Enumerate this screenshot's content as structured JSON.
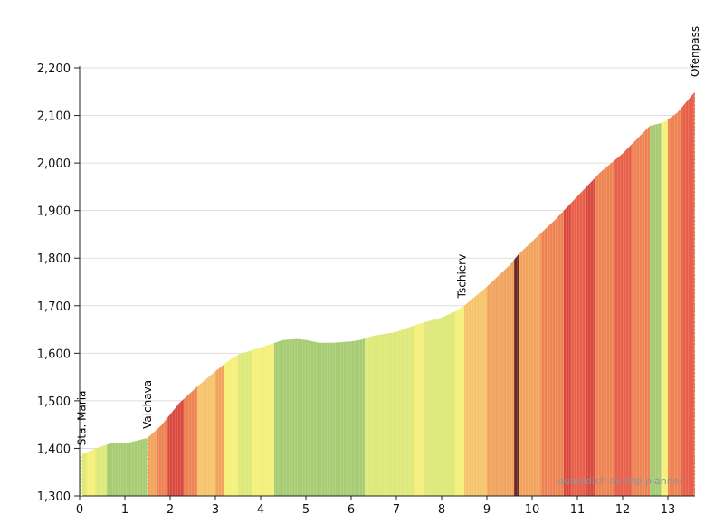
{
  "chart_data": {
    "type": "area",
    "title": "",
    "xlabel": "",
    "ylabel": "",
    "xlim": [
      0,
      13.6
    ],
    "ylim": [
      1300,
      2200
    ],
    "x_ticks": [
      0,
      1,
      2,
      3,
      4,
      5,
      6,
      7,
      8,
      9,
      10,
      11,
      12,
      13
    ],
    "x_tick_labels": [
      "0",
      "1",
      "2",
      "3",
      "4",
      "5",
      "6",
      "7",
      "8",
      "9",
      "10",
      "11",
      "12",
      "13"
    ],
    "y_ticks": [
      1300,
      1400,
      1500,
      1600,
      1700,
      1800,
      1900,
      2000,
      2100,
      2200
    ],
    "y_tick_labels": [
      "1,300",
      "1,400",
      "1,500",
      "1,600",
      "1,700",
      "1,800",
      "1,900",
      "2,000",
      "2,100",
      "2,200"
    ],
    "grid": "horizontal",
    "series": [
      {
        "x": [
          0,
          0.3,
          0.6,
          0.75,
          1.0,
          1.2,
          1.5,
          1.8,
          2.2,
          2.6,
          3.0,
          3.3,
          3.5,
          4.0,
          4.5,
          4.8,
          5.0,
          5.3,
          5.6,
          6.0,
          6.2,
          6.5,
          7.0,
          7.5,
          8.0,
          8.3,
          8.5,
          9.0,
          9.5,
          9.7,
          10.0,
          10.5,
          11.0,
          11.5,
          12.0,
          12.6,
          12.9,
          13.2,
          13.6
        ],
        "y": [
          1385,
          1398,
          1408,
          1412,
          1410,
          1415,
          1422,
          1448,
          1495,
          1530,
          1562,
          1585,
          1597,
          1612,
          1628,
          1630,
          1628,
          1622,
          1622,
          1625,
          1628,
          1637,
          1645,
          1662,
          1675,
          1688,
          1700,
          1740,
          1785,
          1808,
          1835,
          1880,
          1930,
          1980,
          2020,
          2078,
          2085,
          2105,
          2150
        ]
      }
    ],
    "gradient_colors": [
      "#a8cc74",
      "#dfe97a",
      "#f5f07a",
      "#f6c46a",
      "#f2a45e",
      "#ee8454",
      "#e8604a",
      "#d84a40",
      "#6b2a26"
    ],
    "gradient_bands": [
      {
        "from": 0,
        "to": 0.15,
        "color": 1
      },
      {
        "from": 0.15,
        "to": 0.35,
        "color": 2
      },
      {
        "from": 0.35,
        "to": 0.6,
        "color": 1
      },
      {
        "from": 0.6,
        "to": 1.5,
        "color": 0
      },
      {
        "from": 1.5,
        "to": 1.7,
        "color": 4
      },
      {
        "from": 1.7,
        "to": 1.95,
        "color": 5
      },
      {
        "from": 1.95,
        "to": 2.3,
        "color": 7
      },
      {
        "from": 2.3,
        "to": 2.6,
        "color": 5
      },
      {
        "from": 2.6,
        "to": 3.0,
        "color": 3
      },
      {
        "from": 3.0,
        "to": 3.2,
        "color": 4
      },
      {
        "from": 3.2,
        "to": 3.5,
        "color": 2
      },
      {
        "from": 3.5,
        "to": 3.8,
        "color": 1
      },
      {
        "from": 3.8,
        "to": 4.3,
        "color": 2
      },
      {
        "from": 4.3,
        "to": 6.3,
        "color": 0
      },
      {
        "from": 6.3,
        "to": 7.4,
        "color": 1
      },
      {
        "from": 7.4,
        "to": 7.6,
        "color": 2
      },
      {
        "from": 7.6,
        "to": 8.3,
        "color": 1
      },
      {
        "from": 8.3,
        "to": 8.5,
        "color": 2
      },
      {
        "from": 8.5,
        "to": 9.0,
        "color": 3
      },
      {
        "from": 9.0,
        "to": 9.6,
        "color": 4
      },
      {
        "from": 9.6,
        "to": 9.72,
        "color": 8
      },
      {
        "from": 9.72,
        "to": 10.2,
        "color": 4
      },
      {
        "from": 10.2,
        "to": 10.7,
        "color": 5
      },
      {
        "from": 10.7,
        "to": 10.85,
        "color": 7
      },
      {
        "from": 10.85,
        "to": 11.2,
        "color": 6
      },
      {
        "from": 11.2,
        "to": 11.4,
        "color": 7
      },
      {
        "from": 11.4,
        "to": 11.8,
        "color": 5
      },
      {
        "from": 11.8,
        "to": 12.2,
        "color": 6
      },
      {
        "from": 12.2,
        "to": 12.6,
        "color": 5
      },
      {
        "from": 12.6,
        "to": 12.85,
        "color": 0
      },
      {
        "from": 12.85,
        "to": 13.0,
        "color": 2
      },
      {
        "from": 13.0,
        "to": 13.3,
        "color": 5
      },
      {
        "from": 13.3,
        "to": 13.6,
        "color": 6
      }
    ],
    "annotations": [
      {
        "label": "Sta. Maria",
        "x": 0.05
      },
      {
        "label": "Valchava",
        "x": 1.5
      },
      {
        "label": "Tschierv",
        "x": 8.45
      },
      {
        "label": "Ofenpass",
        "x": 13.6
      }
    ],
    "watermark": "quaeldich.de trip planner"
  }
}
